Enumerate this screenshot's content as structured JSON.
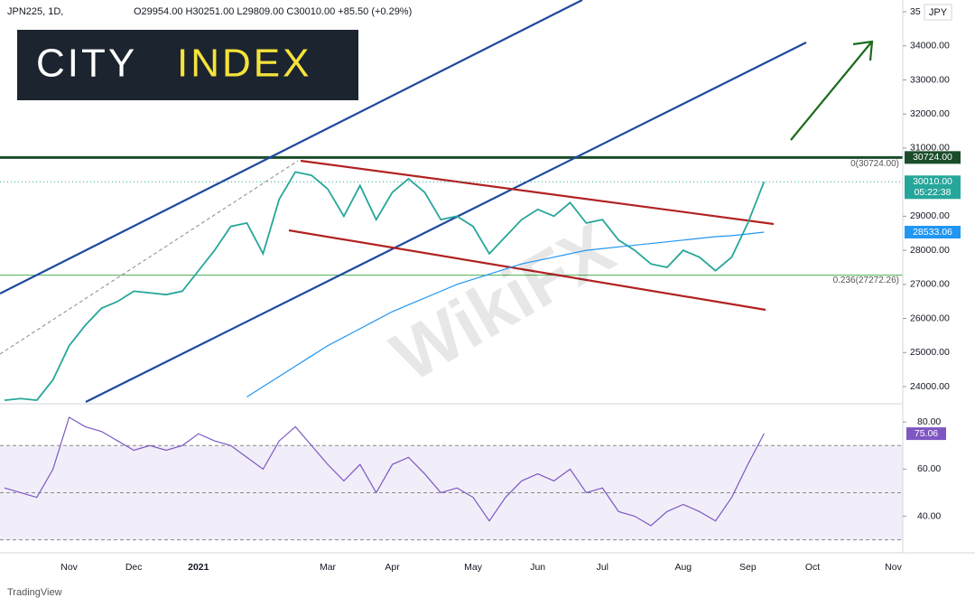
{
  "logo": {
    "left": "CITY",
    "right": "INDEX"
  },
  "watermark": "WikiFX",
  "footer": "TradingView",
  "chart_data": [
    {
      "type": "line",
      "header": {
        "symbol": "JPN225, 1D,",
        "ohlc": "O29954.00 H30251.00 L29809.00 C30010.00 +85.50 (+0.29%)"
      },
      "currency": "JPY",
      "categories": [
        null,
        null,
        null,
        null,
        "Nov",
        null,
        null,
        null,
        "Dec",
        null,
        null,
        null,
        "2021",
        null,
        null,
        null,
        null,
        null,
        null,
        null,
        "Mar",
        null,
        null,
        null,
        "Apr",
        null,
        null,
        null,
        null,
        "May",
        null,
        null,
        null,
        "Jun",
        null,
        null,
        null,
        "Jul",
        null,
        null,
        null,
        null,
        "Aug",
        null,
        null,
        null,
        "Sep",
        null,
        null,
        null,
        "Oct",
        null,
        null,
        null,
        null,
        "Nov"
      ],
      "series": [
        {
          "color": "#26a69a",
          "values": [
            23600,
            23650,
            23600,
            24200,
            25200,
            25800,
            26300,
            26500,
            26800,
            26750,
            26700,
            26800,
            27400,
            28000,
            28700,
            28800,
            27900,
            29500,
            30300,
            30200,
            29800,
            29000,
            29900,
            28900,
            29700,
            30100,
            29700,
            28900,
            29000,
            28700,
            27900,
            28400,
            28900,
            29200,
            29000,
            29400,
            28800,
            28900,
            28300,
            28000,
            27600,
            27500,
            28000,
            27800,
            27400,
            27800,
            28800,
            30010,
            null,
            null,
            null,
            null,
            null,
            null,
            null,
            null
          ]
        },
        {
          "color": "#2196f3",
          "values": [
            null,
            null,
            null,
            null,
            null,
            null,
            null,
            null,
            null,
            null,
            null,
            null,
            null,
            null,
            null,
            23700,
            24000,
            24300,
            24600,
            24900,
            25200,
            25450,
            25700,
            25950,
            26200,
            26400,
            26600,
            26800,
            27000,
            27150,
            27300,
            27450,
            27600,
            27700,
            27800,
            27900,
            28000,
            28050,
            28100,
            28150,
            28200,
            28250,
            28300,
            28350,
            28400,
            28430,
            28480,
            28533.06,
            null,
            null,
            null,
            null,
            null,
            null,
            null,
            null
          ]
        }
      ],
      "ylim": [
        23550,
        35345
      ],
      "yticks": [
        {
          "value": 34000,
          "label": "34000.00"
        },
        {
          "value": 33000,
          "label": "33000.00"
        },
        {
          "value": 32000,
          "label": "32000.00"
        },
        {
          "value": 31000,
          "label": "31000.00"
        },
        {
          "value": 29000,
          "label": "29000.00"
        },
        {
          "value": 28000,
          "label": "28000.00"
        },
        {
          "value": 27000,
          "label": "27000.00"
        },
        {
          "value": 26000,
          "label": "26000.00"
        },
        {
          "value": 25000,
          "label": "25000.00"
        },
        {
          "value": 24000,
          "label": "24000.00"
        },
        {
          "value": 35000,
          "label": "35"
        }
      ],
      "price_labels": [
        {
          "value": 30724,
          "label": "30724.00",
          "color": "#1b4d2b"
        },
        {
          "value": 30010,
          "label": "30010.00",
          "sublabel": "05:22:38",
          "color": "#26a69a"
        },
        {
          "value": 28533.06,
          "label": "28533.06",
          "color": "#2196f3"
        }
      ],
      "fib": [
        {
          "value": 30724,
          "label": "0(30724.00)",
          "color": "#1b4d2b"
        },
        {
          "value": 27272.26,
          "label": "0.236(27272.26)",
          "color": "#4caf50"
        }
      ]
    },
    {
      "type": "line",
      "series": [
        {
          "color": "#7e57c2",
          "values": [
            52,
            50,
            48,
            60,
            82,
            78,
            76,
            72,
            68,
            70,
            68,
            70,
            75,
            72,
            70,
            65,
            60,
            72,
            78,
            70,
            62,
            55,
            62,
            50,
            62,
            65,
            58,
            50,
            52,
            48,
            38,
            48,
            55,
            58,
            55,
            60,
            50,
            52,
            42,
            40,
            36,
            42,
            45,
            42,
            38,
            48,
            62,
            75.06,
            null,
            null,
            null,
            null,
            null,
            null,
            null,
            null
          ]
        }
      ],
      "ylim": [
        26.4,
        86.6
      ],
      "yticks": [
        {
          "value": 80,
          "label": "80.00"
        },
        {
          "value": 60,
          "label": "60.00"
        },
        {
          "value": 40,
          "label": "40.00"
        }
      ],
      "levels": [
        70,
        50,
        30
      ],
      "last_label": {
        "value": 75.06,
        "label": "75.06",
        "color": "#7e57c2"
      }
    }
  ]
}
